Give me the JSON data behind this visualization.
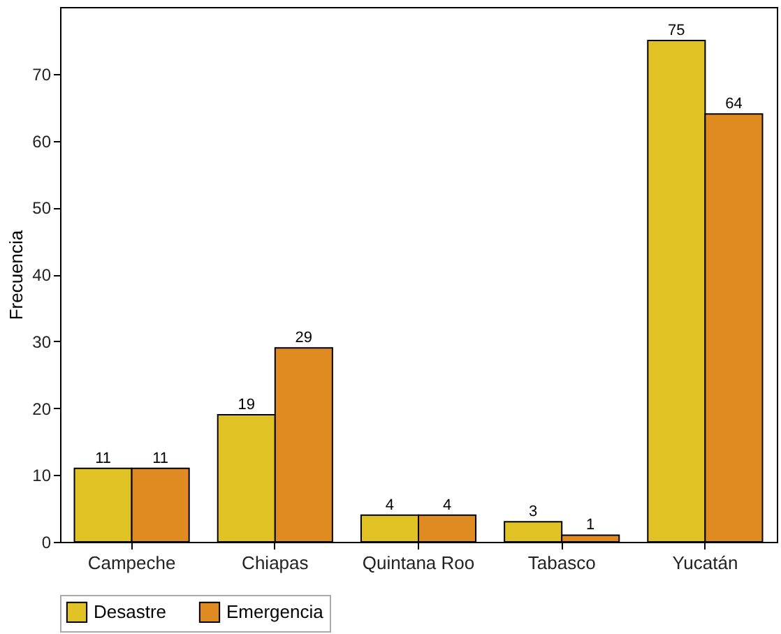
{
  "chart_data": {
    "type": "bar",
    "ylabel": "Frecuencia",
    "categories": [
      "Campeche",
      "Chiapas",
      "Quintana Roo",
      "Tabasco",
      "Yucatán"
    ],
    "series": [
      {
        "name": "Desastre",
        "color": "#e0c224",
        "values": [
          11,
          19,
          4,
          3,
          75
        ]
      },
      {
        "name": "Emergencia",
        "color": "#e08a22",
        "values": [
          11,
          29,
          4,
          1,
          64
        ]
      }
    ],
    "ylim": [
      0,
      80
    ],
    "yticks": [
      0,
      10,
      20,
      30,
      40,
      50,
      60,
      70
    ],
    "data_labels": true,
    "legend": "bottom",
    "grid": false
  }
}
